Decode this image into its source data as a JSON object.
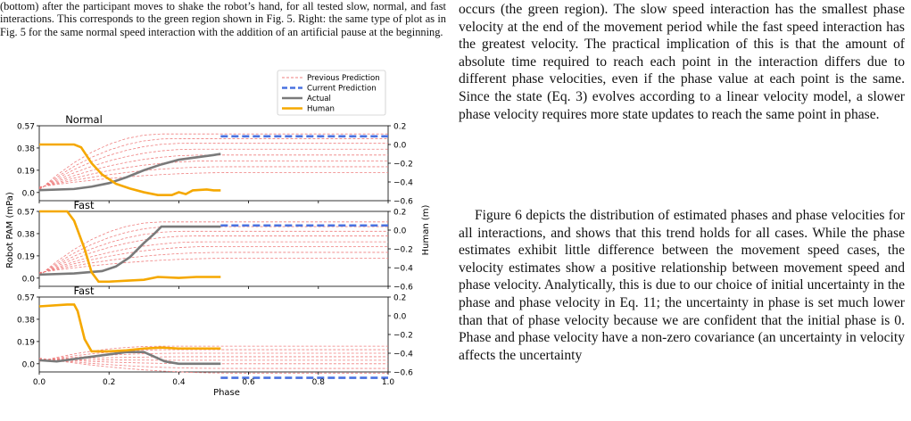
{
  "caption": {
    "text": "(bottom) after the participant moves to shake the robot’s hand, for all tested slow, normal, and fast interactions. This corresponds to the green region shown in Fig. 5. Right: the same type of plot as in Fig. 5 for the same normal speed interaction with the addition of an artificial pause at the beginning."
  },
  "body": {
    "paragraph_1": "occurs (the green region). The slow speed interaction has the smallest phase velocity at the end of the movement period while the fast speed interaction has the greatest velocity. The practical implication of this is that the amount of absolute time required to reach each point in the interaction differs due to different phase velocities, even if the phase value at each point is the same. Since the state (Eq. 3) evolves according to a linear velocity model, a slower phase velocity requires more state updates to reach the same point in phase.",
    "paragraph_2_before": "Figure 6 depicts the distribution of estimated phases and phase velocities for all interactions, and shows that this trend holds for all cases. While the phase estimates exhibit little difference between the movement speed cases, the velocity estimates show a positive relationship between movement speed and phase velocity. Analytically, this is due to our choice of initial uncertainty in the phase and phase velocity in Eq. 11; the uncertainty in phase is set much lower than that of phase velocity because we are confident that the initial phase is ",
    "paragraph_2_math": "0",
    "paragraph_2_after": ". Phase and phase velocity have a non-zero covariance (an uncertainty in velocity affects the uncertainty"
  },
  "chart_data": {
    "type": "line",
    "xlabel": "Phase",
    "ylabel_left": "Robot PAM (mPa)",
    "ylabel_right": "Human (m)",
    "xlim": [
      0,
      1.0
    ],
    "x_ticks": [
      "0.0",
      "0.2",
      "0.4",
      "0.6",
      "0.8",
      "1.0"
    ],
    "y_left_ticks": [
      "0.0",
      "0.19",
      "0.38",
      "0.57"
    ],
    "y_right_ticks": [
      "−0.6",
      "−0.4",
      "−0.2",
      "0.0",
      "0.2"
    ],
    "legend": [
      "Previous Prediction",
      "Current Prediction",
      "Actual",
      "Human"
    ],
    "legend_position": "top-right",
    "colors": {
      "previous": "#ef7f7f",
      "current": "#4a72e0",
      "actual": "#7a7a7a",
      "human": "#f5a800"
    },
    "panels": [
      {
        "title": "Normal",
        "actual": [
          [
            0,
            0.02
          ],
          [
            0.1,
            0.03
          ],
          [
            0.15,
            0.05
          ],
          [
            0.2,
            0.08
          ],
          [
            0.25,
            0.13
          ],
          [
            0.3,
            0.19
          ],
          [
            0.35,
            0.24
          ],
          [
            0.4,
            0.28
          ],
          [
            0.45,
            0.3
          ],
          [
            0.5,
            0.32
          ],
          [
            0.52,
            0.33
          ]
        ],
        "human": [
          [
            0,
            0.0
          ],
          [
            0.1,
            0.0
          ],
          [
            0.12,
            -0.03
          ],
          [
            0.15,
            -0.2
          ],
          [
            0.18,
            -0.32
          ],
          [
            0.22,
            -0.42
          ],
          [
            0.26,
            -0.47
          ],
          [
            0.3,
            -0.51
          ],
          [
            0.34,
            -0.54
          ],
          [
            0.38,
            -0.54
          ],
          [
            0.4,
            -0.51
          ],
          [
            0.42,
            -0.53
          ],
          [
            0.44,
            -0.49
          ],
          [
            0.48,
            -0.48
          ],
          [
            0.5,
            -0.49
          ],
          [
            0.52,
            -0.49
          ]
        ],
        "current": [
          [
            0.52,
            0.48
          ],
          [
            1.0,
            0.48
          ]
        ],
        "previous_end_values": [
          0.5,
          0.46,
          0.42,
          0.37,
          0.32,
          0.27,
          0.22,
          0.17
        ]
      },
      {
        "title": "Fast",
        "actual": [
          [
            0,
            0.03
          ],
          [
            0.1,
            0.04
          ],
          [
            0.18,
            0.06
          ],
          [
            0.22,
            0.1
          ],
          [
            0.26,
            0.18
          ],
          [
            0.3,
            0.3
          ],
          [
            0.33,
            0.38
          ],
          [
            0.35,
            0.44
          ],
          [
            0.4,
            0.44
          ],
          [
            0.52,
            0.44
          ]
        ],
        "human": [
          [
            0,
            0.2
          ],
          [
            0.08,
            0.2
          ],
          [
            0.1,
            0.1
          ],
          [
            0.13,
            -0.2
          ],
          [
            0.15,
            -0.45
          ],
          [
            0.17,
            -0.55
          ],
          [
            0.2,
            -0.55
          ],
          [
            0.25,
            -0.54
          ],
          [
            0.3,
            -0.53
          ],
          [
            0.34,
            -0.5
          ],
          [
            0.4,
            -0.51
          ],
          [
            0.45,
            -0.5
          ],
          [
            0.52,
            -0.5
          ]
        ],
        "current": [
          [
            0.52,
            0.45
          ],
          [
            1.0,
            0.45
          ]
        ],
        "previous_end_values": [
          0.48,
          0.44,
          0.4,
          0.36,
          0.31,
          0.27,
          0.22,
          0.17
        ]
      },
      {
        "title": "Fast",
        "actual": [
          [
            0,
            0.03
          ],
          [
            0.05,
            0.02
          ],
          [
            0.1,
            0.04
          ],
          [
            0.15,
            0.06
          ],
          [
            0.2,
            0.08
          ],
          [
            0.25,
            0.1
          ],
          [
            0.3,
            0.1
          ],
          [
            0.33,
            0.06
          ],
          [
            0.36,
            0.02
          ],
          [
            0.4,
            0.0
          ],
          [
            0.52,
            0.0
          ]
        ],
        "human": [
          [
            0,
            0.1
          ],
          [
            0.08,
            0.12
          ],
          [
            0.1,
            0.12
          ],
          [
            0.11,
            0.05
          ],
          [
            0.13,
            -0.25
          ],
          [
            0.15,
            -0.38
          ],
          [
            0.2,
            -0.38
          ],
          [
            0.25,
            -0.37
          ],
          [
            0.3,
            -0.35
          ],
          [
            0.35,
            -0.34
          ],
          [
            0.4,
            -0.35
          ],
          [
            0.52,
            -0.35
          ]
        ],
        "current": [
          [
            0.52,
            -0.12
          ],
          [
            1.0,
            -0.12
          ]
        ],
        "previous_end_values": [
          0.15,
          0.12,
          0.09,
          0.06,
          0.03,
          0.0,
          -0.04,
          -0.08
        ]
      }
    ]
  }
}
